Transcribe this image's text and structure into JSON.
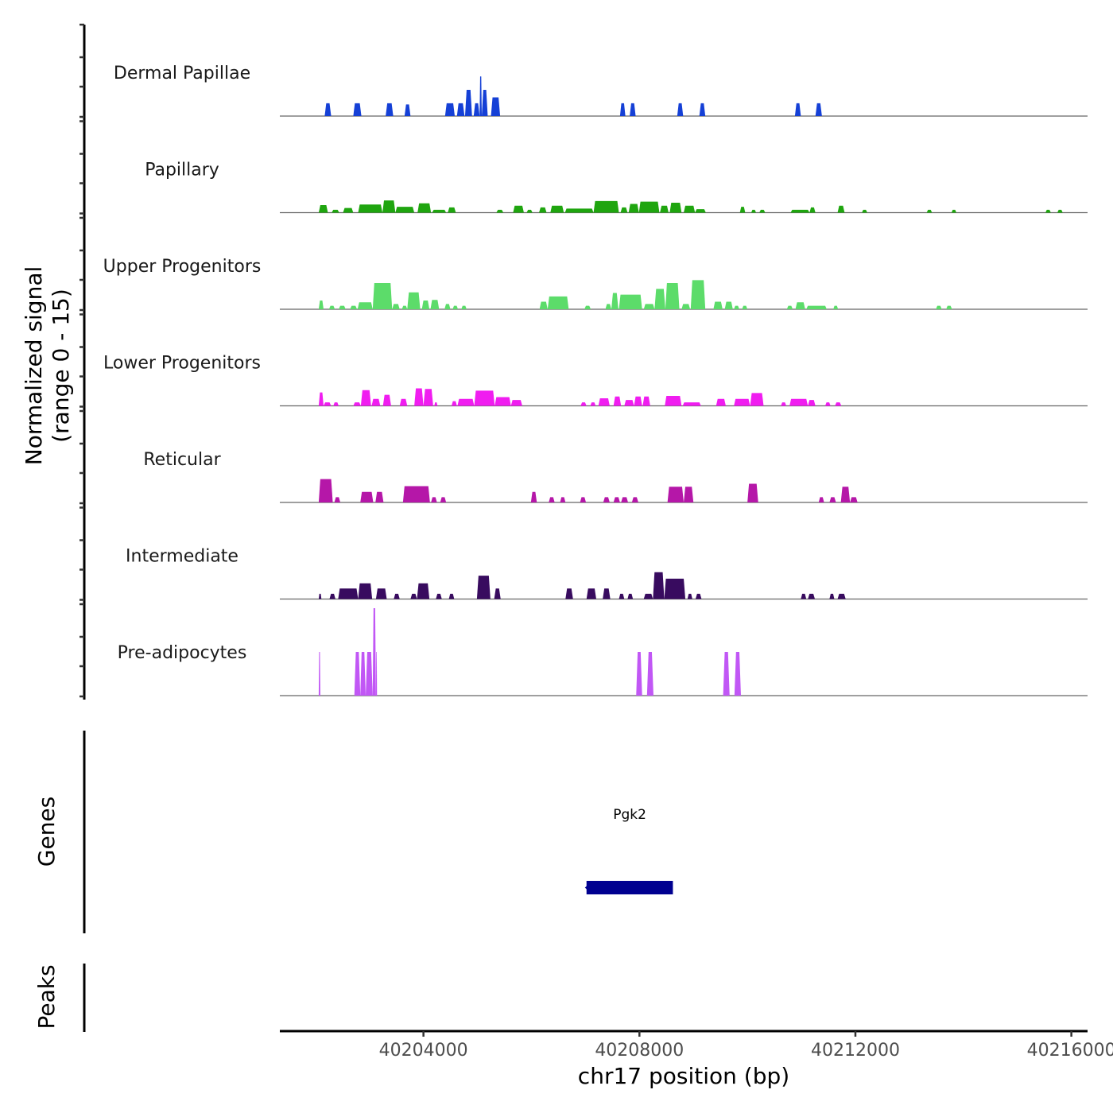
{
  "chart_data": {
    "type": "area",
    "title": "",
    "ylabel_line1": "Normalized signal",
    "ylabel_line2": "(range 0 - 15)",
    "ylim": [
      0,
      15
    ],
    "xlabel": "chr17 position (bp)",
    "xlim": [
      40201340,
      40216300
    ],
    "xticks": [
      40204000,
      40208000,
      40212000,
      40216000
    ],
    "xtick_labels": [
      "40204000",
      "40208000",
      "40212000",
      "40216000"
    ],
    "tracks": [
      {
        "name": "Dermal Papillae",
        "color": "#1540D6",
        "peaks": [
          [
            40202170,
            40202290,
            2.2
          ],
          [
            40202700,
            40202850,
            2.2
          ],
          [
            40203300,
            40203440,
            2.2
          ],
          [
            40203650,
            40203760,
            2.0
          ],
          [
            40204400,
            40204580,
            2.2
          ],
          [
            40204620,
            40204760,
            2.2
          ],
          [
            40204770,
            40204900,
            4.5
          ],
          [
            40204930,
            40205040,
            2.2
          ],
          [
            40205040,
            40205080,
            6.8
          ],
          [
            40205080,
            40205190,
            4.5
          ],
          [
            40205250,
            40205420,
            3.2
          ],
          [
            40207640,
            40207740,
            2.2
          ],
          [
            40207820,
            40207930,
            2.2
          ],
          [
            40208700,
            40208810,
            2.2
          ],
          [
            40209110,
            40209220,
            2.2
          ],
          [
            40210880,
            40210990,
            2.2
          ],
          [
            40211260,
            40211380,
            2.2
          ]
        ]
      },
      {
        "name": "Papillary",
        "color": "#1FA50F",
        "peaks": [
          [
            40202060,
            40202230,
            1.3
          ],
          [
            40202300,
            40202440,
            0.5
          ],
          [
            40202510,
            40202700,
            0.8
          ],
          [
            40202790,
            40203240,
            1.4
          ],
          [
            40203240,
            40203480,
            2.1
          ],
          [
            40203480,
            40203830,
            1.0
          ],
          [
            40203890,
            40204140,
            1.6
          ],
          [
            40204160,
            40204420,
            0.5
          ],
          [
            40204450,
            40204600,
            0.9
          ],
          [
            40205350,
            40205480,
            0.5
          ],
          [
            40205660,
            40205860,
            1.2
          ],
          [
            40205910,
            40206020,
            0.5
          ],
          [
            40206140,
            40206280,
            0.9
          ],
          [
            40206350,
            40206600,
            1.2
          ],
          [
            40206620,
            40207150,
            0.7
          ],
          [
            40207150,
            40207620,
            2.0
          ],
          [
            40207650,
            40207780,
            0.9
          ],
          [
            40207800,
            40207990,
            1.5
          ],
          [
            40207990,
            40208370,
            1.9
          ],
          [
            40208380,
            40208540,
            1.2
          ],
          [
            40208560,
            40208780,
            1.7
          ],
          [
            40208820,
            40209030,
            1.2
          ],
          [
            40209030,
            40209230,
            0.6
          ],
          [
            40209860,
            40209960,
            1.0
          ],
          [
            40210070,
            40210160,
            0.5
          ],
          [
            40210220,
            40210330,
            0.5
          ],
          [
            40210800,
            40211150,
            0.5
          ],
          [
            40211150,
            40211260,
            0.9
          ],
          [
            40211670,
            40211800,
            1.2
          ],
          [
            40212120,
            40212220,
            0.5
          ],
          [
            40213320,
            40213420,
            0.5
          ],
          [
            40213780,
            40213870,
            0.5
          ],
          [
            40215520,
            40215620,
            0.5
          ],
          [
            40215740,
            40215840,
            0.5
          ]
        ]
      },
      {
        "name": "Upper Progenitors",
        "color": "#5CDC6A",
        "peaks": [
          [
            40202060,
            40202150,
            1.5
          ],
          [
            40202250,
            40202360,
            0.6
          ],
          [
            40202430,
            40202560,
            0.6
          ],
          [
            40202640,
            40202770,
            0.6
          ],
          [
            40202780,
            40203060,
            1.2
          ],
          [
            40203060,
            40203420,
            4.5
          ],
          [
            40203420,
            40203560,
            0.9
          ],
          [
            40203600,
            40203700,
            0.6
          ],
          [
            40203700,
            40203940,
            2.9
          ],
          [
            40203970,
            40204110,
            1.5
          ],
          [
            40204130,
            40204290,
            1.6
          ],
          [
            40204390,
            40204500,
            0.9
          ],
          [
            40204540,
            40204640,
            0.6
          ],
          [
            40204700,
            40204800,
            0.6
          ],
          [
            40206150,
            40206300,
            1.3
          ],
          [
            40206300,
            40206690,
            2.2
          ],
          [
            40206980,
            40207100,
            0.6
          ],
          [
            40207370,
            40207480,
            0.9
          ],
          [
            40207480,
            40207610,
            2.8
          ],
          [
            40207620,
            40208050,
            2.5
          ],
          [
            40208080,
            40208280,
            0.9
          ],
          [
            40208280,
            40208480,
            3.5
          ],
          [
            40208480,
            40208740,
            4.5
          ],
          [
            40208780,
            40208940,
            0.9
          ],
          [
            40208950,
            40209220,
            5.0
          ],
          [
            40209370,
            40209540,
            1.3
          ],
          [
            40209580,
            40209730,
            1.3
          ],
          [
            40209750,
            40209850,
            0.6
          ],
          [
            40209900,
            40210000,
            0.6
          ],
          [
            40210730,
            40210840,
            0.6
          ],
          [
            40210890,
            40211070,
            1.2
          ],
          [
            40211090,
            40211470,
            0.6
          ],
          [
            40211590,
            40211680,
            0.6
          ],
          [
            40213490,
            40213600,
            0.6
          ],
          [
            40213680,
            40213790,
            0.6
          ]
        ]
      },
      {
        "name": "Lower Progenitors",
        "color": "#F01DF0",
        "peaks": [
          [
            40202060,
            40202150,
            2.3
          ],
          [
            40202150,
            40202290,
            0.6
          ],
          [
            40202330,
            40202430,
            0.6
          ],
          [
            40202700,
            40202840,
            0.6
          ],
          [
            40202840,
            40203030,
            2.7
          ],
          [
            40203040,
            40203200,
            1.2
          ],
          [
            40203250,
            40203400,
            1.9
          ],
          [
            40203560,
            40203700,
            1.2
          ],
          [
            40203830,
            40204000,
            3.0
          ],
          [
            40204000,
            40204180,
            2.9
          ],
          [
            40204200,
            40204260,
            0.6
          ],
          [
            40204520,
            40204620,
            0.8
          ],
          [
            40204630,
            40204940,
            1.2
          ],
          [
            40204940,
            40205320,
            2.6
          ],
          [
            40205320,
            40205620,
            1.5
          ],
          [
            40205620,
            40205830,
            1.0
          ],
          [
            40206910,
            40207020,
            0.6
          ],
          [
            40207090,
            40207190,
            0.6
          ],
          [
            40207240,
            40207450,
            1.3
          ],
          [
            40207520,
            40207660,
            1.6
          ],
          [
            40207720,
            40207900,
            1.0
          ],
          [
            40207900,
            40208050,
            1.6
          ],
          [
            40208060,
            40208200,
            1.6
          ],
          [
            40208470,
            40208780,
            1.7
          ],
          [
            40208800,
            40209140,
            0.6
          ],
          [
            40209420,
            40209600,
            1.2
          ],
          [
            40209750,
            40210050,
            1.2
          ],
          [
            40210050,
            40210300,
            2.2
          ],
          [
            40210620,
            40210720,
            0.6
          ],
          [
            40210780,
            40211120,
            1.2
          ],
          [
            40211120,
            40211260,
            1.0
          ],
          [
            40211440,
            40211540,
            0.6
          ],
          [
            40211620,
            40211740,
            0.6
          ]
        ]
      },
      {
        "name": "Reticular",
        "color": "#B517A8",
        "peaks": [
          [
            40202060,
            40202320,
            4.0
          ],
          [
            40202350,
            40202460,
            0.9
          ],
          [
            40202830,
            40203070,
            1.8
          ],
          [
            40203110,
            40203260,
            1.8
          ],
          [
            40203620,
            40204120,
            2.8
          ],
          [
            40204140,
            40204250,
            0.9
          ],
          [
            40204310,
            40204420,
            0.9
          ],
          [
            40205990,
            40206100,
            1.8
          ],
          [
            40206320,
            40206430,
            0.9
          ],
          [
            40206530,
            40206630,
            0.9
          ],
          [
            40206900,
            40207010,
            0.9
          ],
          [
            40207330,
            40207450,
            0.9
          ],
          [
            40207520,
            40207640,
            0.9
          ],
          [
            40207660,
            40207790,
            0.9
          ],
          [
            40207860,
            40207980,
            0.9
          ],
          [
            40208520,
            40208820,
            2.7
          ],
          [
            40208820,
            40209000,
            2.7
          ],
          [
            40210000,
            40210200,
            3.2
          ],
          [
            40211320,
            40211420,
            0.9
          ],
          [
            40211520,
            40211640,
            0.9
          ],
          [
            40211730,
            40211900,
            2.7
          ],
          [
            40211900,
            40212040,
            0.9
          ]
        ]
      },
      {
        "name": "Intermediate",
        "color": "#380B5F",
        "peaks": [
          [
            40202060,
            40202110,
            0.9
          ],
          [
            40202260,
            40202370,
            0.9
          ],
          [
            40202420,
            40202790,
            1.8
          ],
          [
            40202790,
            40203050,
            2.7
          ],
          [
            40203120,
            40203320,
            1.8
          ],
          [
            40203450,
            40203560,
            0.9
          ],
          [
            40203760,
            40203880,
            0.9
          ],
          [
            40203880,
            40204110,
            2.7
          ],
          [
            40204230,
            40204340,
            0.9
          ],
          [
            40204470,
            40204570,
            0.9
          ],
          [
            40204990,
            40205240,
            4.0
          ],
          [
            40205310,
            40205430,
            1.8
          ],
          [
            40206630,
            40206770,
            1.8
          ],
          [
            40207020,
            40207200,
            1.8
          ],
          [
            40207320,
            40207460,
            1.8
          ],
          [
            40207620,
            40207720,
            0.9
          ],
          [
            40207780,
            40207880,
            0.9
          ],
          [
            40208080,
            40208250,
            0.9
          ],
          [
            40208250,
            40208460,
            4.6
          ],
          [
            40208460,
            40208850,
            3.5
          ],
          [
            40208890,
            40208980,
            0.9
          ],
          [
            40209040,
            40209150,
            0.9
          ],
          [
            40210990,
            40211090,
            0.9
          ],
          [
            40211120,
            40211250,
            0.9
          ],
          [
            40211520,
            40211610,
            0.9
          ],
          [
            40211670,
            40211820,
            0.9
          ]
        ]
      },
      {
        "name": "Pre-adipocytes",
        "color": "#C157F5",
        "peaks": [
          [
            40202060,
            40202090,
            7.5
          ],
          [
            40202720,
            40202830,
            7.5
          ],
          [
            40202830,
            40202930,
            7.5
          ],
          [
            40202930,
            40203060,
            7.5
          ],
          [
            40203060,
            40203120,
            15.0
          ],
          [
            40203120,
            40203140,
            7.5
          ],
          [
            40207940,
            40208050,
            7.5
          ],
          [
            40208140,
            40208260,
            7.5
          ],
          [
            40209550,
            40209670,
            7.5
          ],
          [
            40209760,
            40209880,
            7.5
          ]
        ]
      }
    ],
    "genes_track_label": "Genes",
    "genes": [
      {
        "name": "Pgk2",
        "start": 40207020,
        "end": 40208620,
        "strand": "-",
        "color": "#000090"
      }
    ],
    "peaks_track_label": "Peaks",
    "peak_regions": []
  }
}
